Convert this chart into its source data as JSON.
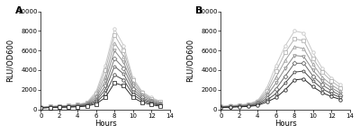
{
  "panel_A_series": [
    [
      200,
      300,
      350,
      400,
      500,
      700,
      1800,
      4500,
      8200,
      6500,
      3200,
      1800,
      1200,
      800
    ],
    [
      200,
      280,
      330,
      380,
      470,
      650,
      1600,
      4000,
      7600,
      6000,
      3000,
      1700,
      1100,
      750
    ],
    [
      180,
      260,
      310,
      360,
      440,
      600,
      1400,
      3400,
      6800,
      5400,
      2700,
      1550,
      1000,
      680
    ],
    [
      170,
      240,
      290,
      330,
      410,
      560,
      1200,
      2900,
      6000,
      4800,
      2400,
      1380,
      900,
      600
    ],
    [
      160,
      220,
      270,
      300,
      370,
      500,
      1000,
      2400,
      5200,
      4200,
      2100,
      1200,
      780,
      520
    ],
    [
      150,
      200,
      240,
      280,
      330,
      440,
      850,
      2000,
      4400,
      3600,
      1800,
      1050,
      680,
      450
    ],
    [
      140,
      190,
      220,
      250,
      290,
      380,
      700,
      1600,
      3500,
      3000,
      1500,
      880,
      580,
      380
    ],
    [
      130,
      170,
      200,
      220,
      250,
      320,
      550,
      1200,
      2700,
      2400,
      1200,
      700,
      460,
      300
    ]
  ],
  "panel_B_series": [
    [
      300,
      380,
      450,
      550,
      900,
      2200,
      4500,
      6500,
      8000,
      7800,
      5800,
      4200,
      3200,
      2500
    ],
    [
      280,
      350,
      420,
      510,
      820,
      1900,
      3900,
      5800,
      7200,
      7000,
      5200,
      3800,
      2900,
      2200
    ],
    [
      260,
      320,
      390,
      470,
      740,
      1650,
      3300,
      5000,
      6400,
      6200,
      4600,
      3300,
      2500,
      1900
    ],
    [
      240,
      290,
      350,
      420,
      650,
      1400,
      2700,
      4200,
      5500,
      5400,
      4000,
      2900,
      2200,
      1650
    ],
    [
      220,
      260,
      310,
      370,
      560,
      1150,
      2100,
      3400,
      4700,
      4700,
      3400,
      2500,
      1900,
      1400
    ],
    [
      200,
      240,
      280,
      330,
      470,
      950,
      1600,
      2700,
      3800,
      3900,
      2900,
      2100,
      1600,
      1200
    ],
    [
      180,
      210,
      250,
      290,
      390,
      750,
      1200,
      2000,
      3000,
      3100,
      2300,
      1700,
      1300,
      1000
    ]
  ],
  "hours": [
    0,
    1,
    2,
    3,
    4,
    5,
    6,
    7,
    8,
    9,
    10,
    11,
    12,
    13
  ],
  "xlim": [
    0,
    14
  ],
  "ylim": [
    0,
    10000
  ],
  "yticks": [
    0,
    2000,
    4000,
    6000,
    8000,
    10000
  ],
  "xticks": [
    0,
    2,
    4,
    6,
    8,
    10,
    12,
    14
  ],
  "ylabel": "RLU/OD600",
  "xlabel": "Hours",
  "panel_labels": [
    "A",
    "B"
  ],
  "line_colors_A": [
    "#c8c8c8",
    "#b4b4b4",
    "#a0a0a0",
    "#8c8c8c",
    "#787878",
    "#606060",
    "#484848",
    "#303030"
  ],
  "line_colors_B": [
    "#c8c8c8",
    "#b4b4b4",
    "#a0a0a0",
    "#888888",
    "#686868",
    "#484848",
    "#282828"
  ],
  "marker_styles_A": [
    "o",
    "s",
    "^",
    "v",
    "D",
    "p",
    "o",
    "s"
  ],
  "marker_styles_B": [
    "o",
    "s",
    "^",
    "v",
    "D",
    "p",
    "o"
  ],
  "markersize": 2.5,
  "linewidth": 0.7,
  "background_color": "#ffffff",
  "axis_fontsize": 5,
  "label_fontsize": 6,
  "panel_label_fontsize": 8
}
